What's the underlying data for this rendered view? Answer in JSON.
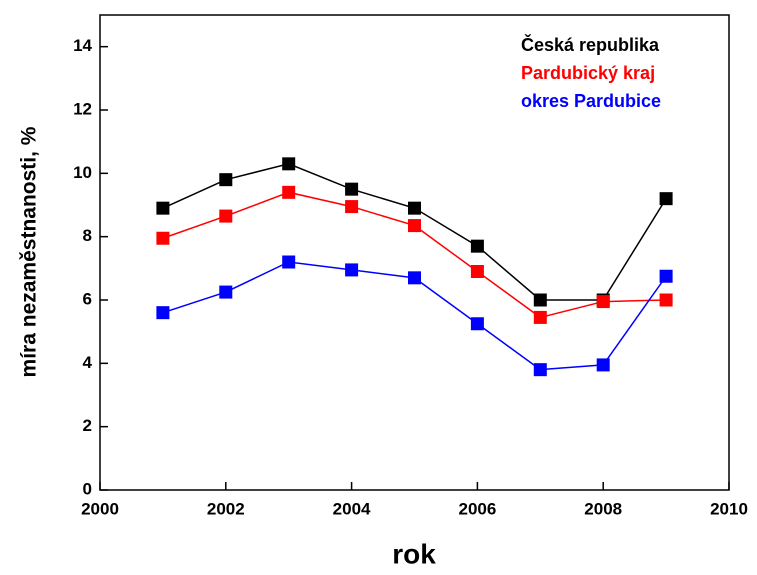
{
  "chart_data": {
    "type": "line",
    "x_label": "rok",
    "y_label": "míra nezaměstnanosti, %",
    "x": [
      2001,
      2002,
      2003,
      2004,
      2005,
      2006,
      2007,
      2008,
      2009
    ],
    "series": [
      {
        "name": "Česká republika",
        "color": "#000000",
        "values": [
          8.9,
          9.8,
          10.3,
          9.5,
          8.9,
          7.7,
          6.0,
          6.0,
          9.2
        ]
      },
      {
        "name": "Pardubický kraj",
        "color": "#ff0000",
        "values": [
          7.95,
          8.65,
          9.4,
          8.95,
          8.35,
          6.9,
          5.45,
          5.95,
          6.0
        ]
      },
      {
        "name": "okres Pardubice",
        "color": "#0000ff",
        "values": [
          5.6,
          6.25,
          7.2,
          6.95,
          6.7,
          5.25,
          3.8,
          3.95,
          6.75
        ]
      }
    ],
    "xlim": [
      2000,
      2010
    ],
    "xticks": [
      2000,
      2002,
      2004,
      2006,
      2008,
      2010
    ],
    "ylim": [
      0,
      15
    ],
    "yticks": [
      0,
      2,
      4,
      6,
      8,
      10,
      12,
      14
    ],
    "grid": false,
    "legend": "upper right"
  }
}
